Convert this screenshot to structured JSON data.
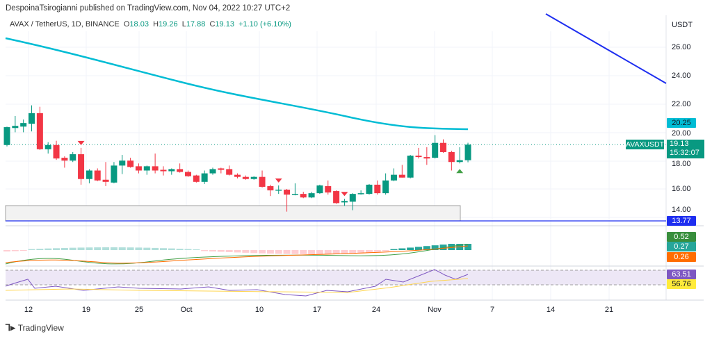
{
  "header": {
    "published": "DespoinaTsirogianni published on TradingView.com, Nov 04, 2022 10:27 UTC+2",
    "symbol": "AVAX / TetherUS, 1D, BINANCE",
    "o_label": "O",
    "o": "18.03",
    "h_label": "H",
    "h": "19.26",
    "l_label": "L",
    "l": "17.88",
    "c_label": "C",
    "c": "19.13",
    "change": "+1.10 (+6.10%)"
  },
  "price_axis": {
    "currency": "USDT",
    "ticks": [
      "26.00",
      "24.00",
      "22.00",
      "20.00",
      "18.00",
      "16.00",
      "14.00"
    ]
  },
  "tags": {
    "ma": "20.25",
    "symbol": "AVAXUSDT",
    "price": "19.13",
    "countdown": "15:32:07",
    "support": "13.77",
    "macd_hist": "0.52",
    "macd": "0.27",
    "signal": "0.26",
    "rsi": "63.51",
    "rsi_ma": "56.76"
  },
  "colors": {
    "up": "#089981",
    "down": "#f23645",
    "ma": "#00bcd4",
    "line": "#2962ff"
  },
  "footer": {
    "brand": "TradingView"
  },
  "chart_data": {
    "type": "candlestick",
    "title": "AVAX / TetherUS, 1D, BINANCE",
    "ylim": [
      13,
      28
    ],
    "x_ticks": [
      "12",
      "19",
      "25",
      "Oct",
      "10",
      "17",
      "24",
      "Nov",
      "7",
      "14",
      "21"
    ],
    "ohlc": [
      [
        19.1,
        20.4,
        19.0,
        20.36
      ],
      [
        20.3,
        21.15,
        20.0,
        20.45
      ],
      [
        20.4,
        20.9,
        20.0,
        20.65
      ],
      [
        20.6,
        21.9,
        20.06,
        21.35
      ],
      [
        21.35,
        21.8,
        18.75,
        18.8
      ],
      [
        18.8,
        19.3,
        18.5,
        19.1
      ],
      [
        19.1,
        19.4,
        18.05,
        18.15
      ],
      [
        18.2,
        18.3,
        17.5,
        18.0
      ],
      [
        18.0,
        18.6,
        17.9,
        18.45
      ],
      [
        18.45,
        18.9,
        16.3,
        16.7
      ],
      [
        16.7,
        17.4,
        16.4,
        17.3
      ],
      [
        17.3,
        17.45,
        16.55,
        16.6
      ],
      [
        16.65,
        17.9,
        16.2,
        16.5
      ],
      [
        16.45,
        17.9,
        16.4,
        17.65
      ],
      [
        17.65,
        18.4,
        17.05,
        18.0
      ],
      [
        18.0,
        18.2,
        17.5,
        17.55
      ],
      [
        17.6,
        17.8,
        17.1,
        17.3
      ],
      [
        17.3,
        17.65,
        17.0,
        17.6
      ],
      [
        17.6,
        18.5,
        17.1,
        17.3
      ],
      [
        17.35,
        17.6,
        16.95,
        17.25
      ],
      [
        17.25,
        17.45,
        17.0,
        17.4
      ],
      [
        17.4,
        17.8,
        17.15,
        17.2
      ],
      [
        17.2,
        17.3,
        16.85,
        16.9
      ],
      [
        16.95,
        17.0,
        16.45,
        16.5
      ],
      [
        16.5,
        17.3,
        16.35,
        17.1
      ],
      [
        17.1,
        17.5,
        17.0,
        17.4
      ],
      [
        17.45,
        17.5,
        17.1,
        17.35
      ],
      [
        17.4,
        17.65,
        16.95,
        17.0
      ],
      [
        17.0,
        17.1,
        16.75,
        16.85
      ],
      [
        16.85,
        16.95,
        16.65,
        16.7
      ],
      [
        16.7,
        16.9,
        16.65,
        16.85
      ],
      [
        16.85,
        17.3,
        16.1,
        16.15
      ],
      [
        16.2,
        16.3,
        15.5,
        15.9
      ],
      [
        15.9,
        16.25,
        15.65,
        15.95
      ],
      [
        15.95,
        16.0,
        14.4,
        15.6
      ],
      [
        15.6,
        16.4,
        15.55,
        15.65
      ],
      [
        15.65,
        15.8,
        15.35,
        15.4
      ],
      [
        15.4,
        15.8,
        15.35,
        15.7
      ],
      [
        15.7,
        16.3,
        15.65,
        16.25
      ],
      [
        16.2,
        16.6,
        15.6,
        15.75
      ],
      [
        15.85,
        15.9,
        14.95,
        15.0
      ],
      [
        15.05,
        15.3,
        14.8,
        15.15
      ],
      [
        15.1,
        15.7,
        14.5,
        15.65
      ],
      [
        15.65,
        15.9,
        15.6,
        15.7
      ],
      [
        15.65,
        16.35,
        15.6,
        16.3
      ],
      [
        16.3,
        16.6,
        15.6,
        15.7
      ],
      [
        15.7,
        17.1,
        15.6,
        16.6
      ],
      [
        16.6,
        17.45,
        16.55,
        17.0
      ],
      [
        17.0,
        17.7,
        16.8,
        16.8
      ],
      [
        16.8,
        18.4,
        16.75,
        18.35
      ],
      [
        18.35,
        18.9,
        18.15,
        18.25
      ],
      [
        18.25,
        18.95,
        17.7,
        18.15
      ],
      [
        18.2,
        19.8,
        18.15,
        19.25
      ],
      [
        19.25,
        19.5,
        18.55,
        18.6
      ],
      [
        18.6,
        18.7,
        17.3,
        17.9
      ],
      [
        17.9,
        18.95,
        17.8,
        18.03
      ],
      [
        18.03,
        19.26,
        17.88,
        19.13
      ]
    ],
    "signals": [
      {
        "index": 9,
        "type": "sell"
      },
      {
        "index": 33,
        "type": "sell"
      },
      {
        "index": 41,
        "type": "sell"
      },
      {
        "index": 55,
        "type": "buy"
      }
    ],
    "ma_value": 20.25,
    "support_level": 13.77
  }
}
